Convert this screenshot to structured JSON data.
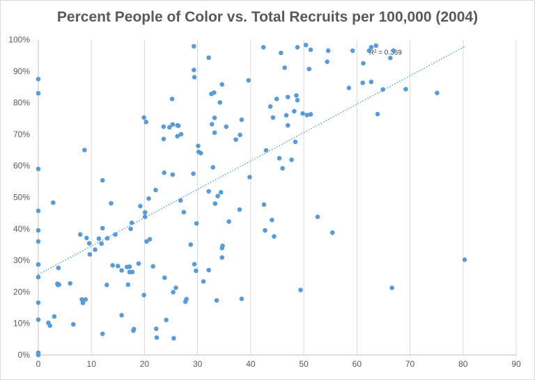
{
  "chart_data": {
    "type": "scatter",
    "title": "Percent People of Color vs. Total Recruits per 100,000 (2004)",
    "xlabel": "",
    "ylabel": "",
    "xlim": [
      0,
      90
    ],
    "ylim": [
      0,
      100
    ],
    "x_ticks": [
      "0",
      "10",
      "20",
      "30",
      "40",
      "50",
      "60",
      "70",
      "80",
      "90"
    ],
    "y_ticks": [
      "0%",
      "10%",
      "20%",
      "30%",
      "40%",
      "50%",
      "60%",
      "70%",
      "80%",
      "90%",
      "100%"
    ],
    "grid": "vertical",
    "marker_color": "#5b9bd5",
    "trendline": {
      "type": "linear",
      "label": "R² = 0.369",
      "color": "#5b9bd5",
      "x": [
        0,
        80.5
      ],
      "y": [
        25.5,
        98
      ]
    },
    "points": [
      [
        0,
        87.5
      ],
      [
        0,
        83
      ],
      [
        0,
        59
      ],
      [
        0,
        45.7
      ],
      [
        0,
        39.5
      ],
      [
        0,
        36
      ],
      [
        0,
        28.7
      ],
      [
        0,
        24.7
      ],
      [
        0,
        16.6
      ],
      [
        0,
        11.2
      ],
      [
        0,
        0.7
      ],
      [
        0,
        0.3
      ],
      [
        0,
        0
      ],
      [
        1.9,
        10.2
      ],
      [
        2.2,
        9.3
      ],
      [
        2.8,
        48.3
      ],
      [
        3,
        12.2
      ],
      [
        3.6,
        22.6
      ],
      [
        3.8,
        27.6
      ],
      [
        3.7,
        22.2
      ],
      [
        3.9,
        22.3
      ],
      [
        6,
        22.7
      ],
      [
        6.6,
        9.7
      ],
      [
        7.9,
        38.2
      ],
      [
        8.2,
        17.6
      ],
      [
        8.4,
        16.5
      ],
      [
        8.7,
        65
      ],
      [
        8.9,
        17.6
      ],
      [
        9.1,
        37.1
      ],
      [
        9.6,
        35.4
      ],
      [
        9.7,
        31.9
      ],
      [
        10.7,
        33.4
      ],
      [
        11.4,
        36.9
      ],
      [
        11.9,
        35.3
      ],
      [
        12.1,
        40.2
      ],
      [
        12.1,
        55.4
      ],
      [
        12.1,
        6.7
      ],
      [
        12.9,
        22.2
      ],
      [
        13,
        37
      ],
      [
        13.7,
        48.1
      ],
      [
        14,
        28.4
      ],
      [
        14.5,
        38.2
      ],
      [
        15,
        28.2
      ],
      [
        15.7,
        26.8
      ],
      [
        15.7,
        12.6
      ],
      [
        16.7,
        27.9
      ],
      [
        16.9,
        22.3
      ],
      [
        17.2,
        26.3
      ],
      [
        17.2,
        28
      ],
      [
        17.4,
        40
      ],
      [
        17.6,
        41.9
      ],
      [
        17.7,
        26.3
      ],
      [
        17.9,
        7.7
      ],
      [
        18,
        8.2
      ],
      [
        18.9,
        29
      ],
      [
        19.2,
        47.2
      ],
      [
        19.9,
        75.3
      ],
      [
        19.9,
        19
      ],
      [
        20.1,
        43.8
      ],
      [
        20.1,
        45.2
      ],
      [
        20.3,
        73.9
      ],
      [
        20.4,
        36
      ],
      [
        20.8,
        49.6
      ],
      [
        21,
        36.7
      ],
      [
        21.6,
        28.1
      ],
      [
        22.1,
        52.3
      ],
      [
        22.2,
        8.3
      ],
      [
        22.3,
        5.5
      ],
      [
        23.6,
        72.4
      ],
      [
        23.6,
        68.5
      ],
      [
        23.7,
        57.8
      ],
      [
        23.8,
        24.5
      ],
      [
        24.1,
        11.1
      ],
      [
        24.7,
        72.2
      ],
      [
        25.2,
        81.2
      ],
      [
        25.3,
        73.1
      ],
      [
        25.3,
        57.2
      ],
      [
        25.4,
        19.9
      ],
      [
        25.5,
        5.3
      ],
      [
        25.9,
        21.3
      ],
      [
        26.2,
        69.4
      ],
      [
        26.2,
        72.8
      ],
      [
        26.4,
        72.7
      ],
      [
        26.8,
        49
      ],
      [
        26.9,
        70
      ],
      [
        27.4,
        45.3
      ],
      [
        27.7,
        16.9
      ],
      [
        27.9,
        17.7
      ],
      [
        28.7,
        35
      ],
      [
        29.2,
        57.5
      ],
      [
        29.3,
        97.9
      ],
      [
        29.3,
        90.4
      ],
      [
        29.4,
        88.1
      ],
      [
        29.4,
        28.8
      ],
      [
        29.7,
        26.7
      ],
      [
        29.8,
        41.7
      ],
      [
        30.1,
        66.3
      ],
      [
        30.2,
        64.4
      ],
      [
        30.6,
        64
      ],
      [
        31.1,
        23.3
      ],
      [
        32.1,
        94.3
      ],
      [
        32.1,
        51.9
      ],
      [
        32.1,
        26.9
      ],
      [
        32.6,
        82.8
      ],
      [
        32.7,
        73.2
      ],
      [
        32.9,
        59.5
      ],
      [
        33.1,
        83.2
      ],
      [
        33.2,
        75.2
      ],
      [
        33.2,
        70.5
      ],
      [
        33.3,
        48
      ],
      [
        33.6,
        17.3
      ],
      [
        33.8,
        50.4
      ],
      [
        34.2,
        80.1
      ],
      [
        34.4,
        51.6
      ],
      [
        34.6,
        85.8
      ],
      [
        34.6,
        30.9
      ],
      [
        34.6,
        33.9
      ],
      [
        34.7,
        34.6
      ],
      [
        35.4,
        72.4
      ],
      [
        35.9,
        42.3
      ],
      [
        37.2,
        68.3
      ],
      [
        37.9,
        46.1
      ],
      [
        38,
        69.8
      ],
      [
        38.3,
        74.6
      ],
      [
        38.3,
        17.8
      ],
      [
        39.6,
        87.1
      ],
      [
        39.8,
        56.4
      ],
      [
        42.4,
        97.6
      ],
      [
        42.5,
        47.7
      ],
      [
        42.7,
        39.5
      ],
      [
        42.9,
        64.9
      ],
      [
        43.7,
        78.8
      ],
      [
        44,
        42.8
      ],
      [
        44.2,
        75.3
      ],
      [
        44.4,
        37.6
      ],
      [
        44.9,
        81.2
      ],
      [
        45.4,
        62.4
      ],
      [
        45.7,
        95.8
      ],
      [
        46,
        59.2
      ],
      [
        46.4,
        91.1
      ],
      [
        46.7,
        76
      ],
      [
        47,
        72.8
      ],
      [
        47,
        81.8
      ],
      [
        47.7,
        61.9
      ],
      [
        48.2,
        77.3
      ],
      [
        48.4,
        67.6
      ],
      [
        48.6,
        82.3
      ],
      [
        48.8,
        97.6
      ],
      [
        48.8,
        80.8
      ],
      [
        49.4,
        20.6
      ],
      [
        49.8,
        76.6
      ],
      [
        50.4,
        98.3
      ],
      [
        50.6,
        76.1
      ],
      [
        51,
        90.7
      ],
      [
        51.3,
        96.8
      ],
      [
        51.3,
        76.3
      ],
      [
        52.6,
        43.8
      ],
      [
        54.4,
        93
      ],
      [
        54.6,
        96.5
      ],
      [
        55.4,
        38.8
      ],
      [
        58.5,
        84.7
      ],
      [
        59.2,
        96.5
      ],
      [
        61.1,
        86.3
      ],
      [
        61.2,
        92.5
      ],
      [
        62.3,
        96.5
      ],
      [
        62.7,
        86.6
      ],
      [
        62.7,
        97.6
      ],
      [
        63.6,
        98.1
      ],
      [
        63.9,
        76.4
      ],
      [
        64.9,
        84.2
      ],
      [
        66.3,
        94.2
      ],
      [
        66.6,
        21.3
      ],
      [
        66.9,
        96.5
      ],
      [
        69.2,
        84.3
      ],
      [
        75.1,
        83.1
      ],
      [
        80.3,
        30.2
      ]
    ]
  }
}
